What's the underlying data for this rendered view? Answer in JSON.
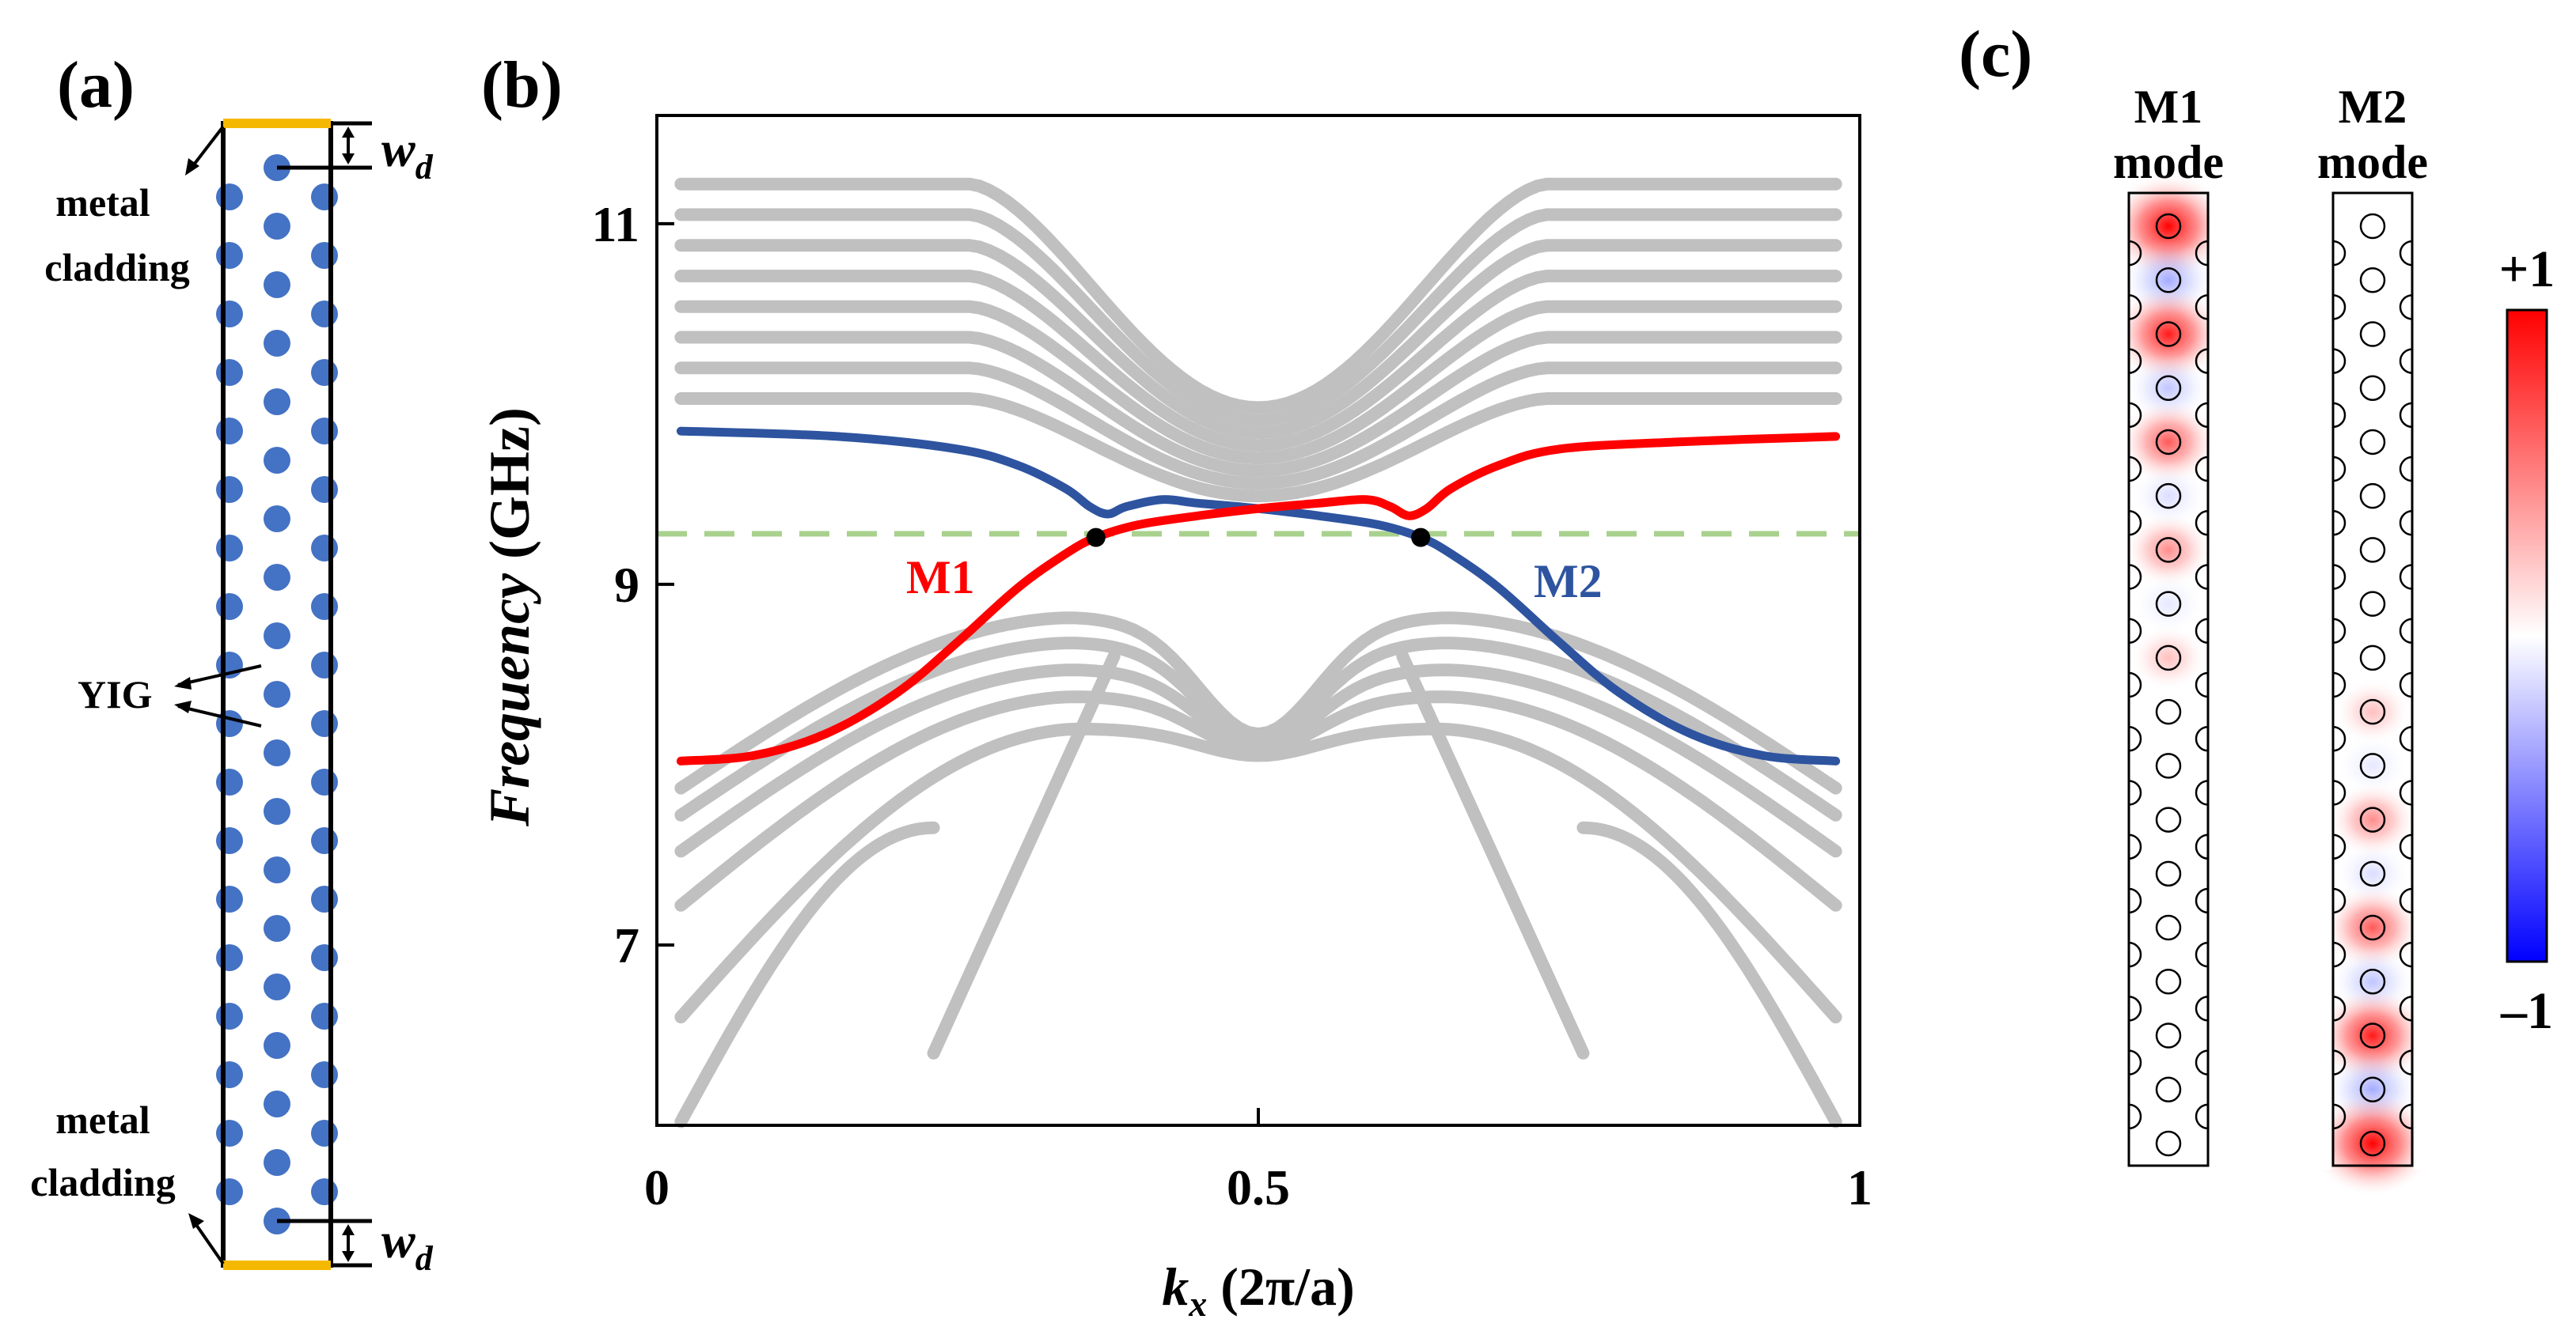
{
  "panels": {
    "a": {
      "label": "(a)",
      "wd_label": "w",
      "wd_sub": "d",
      "metal_top": [
        "metal",
        "cladding"
      ],
      "metal_bottom": [
        "metal",
        "cladding"
      ],
      "yig_label": "YIG",
      "colors": {
        "rod": "#4472c4",
        "cladding": "#f5b800",
        "frame": "#000000"
      }
    },
    "b": {
      "label": "(b)",
      "ylabel_italic": "Frequency",
      "ylabel_unit": "(GHz)",
      "xlabel_k": "k",
      "xlabel_sub": "x",
      "xlabel_unit": " (2π/a)",
      "m1_label": "M1",
      "m2_label": "M2",
      "colors": {
        "m1": "#ff0000",
        "m2": "#2e54a0",
        "bulk": "#c0c0c0",
        "dash": "#a9d18e"
      }
    },
    "c": {
      "label": "(c)",
      "m1_title": [
        "M1",
        "mode"
      ],
      "m2_title": [
        "M2",
        "mode"
      ],
      "cbar_max": "+1",
      "cbar_min": "–1",
      "colors": {
        "pos": "#ff0000",
        "neg": "#0000ff",
        "mid": "#ffffff"
      }
    }
  },
  "chart_data": {
    "type": "line",
    "xlabel": "kx (2π/a)",
    "ylabel": "Frequency (GHz)",
    "xlim": [
      0,
      1
    ],
    "ylim": [
      6,
      11.6
    ],
    "xticks": [
      {
        "v": 0,
        "t": "0"
      },
      {
        "v": 0.5,
        "t": "0.5"
      },
      {
        "v": 1,
        "t": "1"
      }
    ],
    "yticks": [
      {
        "v": 7,
        "t": "7"
      },
      {
        "v": 9,
        "t": "9"
      },
      {
        "v": 11,
        "t": "11"
      }
    ],
    "grid": false,
    "dashed_level": 9.28,
    "crossing_points": [
      [
        0.365,
        9.26
      ],
      [
        0.635,
        9.26
      ]
    ],
    "series": [
      {
        "name": "M1",
        "color": "#ff0000",
        "points": [
          [
            0.02,
            8.02
          ],
          [
            0.08,
            8.05
          ],
          [
            0.14,
            8.17
          ],
          [
            0.2,
            8.4
          ],
          [
            0.25,
            8.68
          ],
          [
            0.3,
            8.98
          ],
          [
            0.34,
            9.17
          ],
          [
            0.365,
            9.26
          ],
          [
            0.4,
            9.33
          ],
          [
            0.45,
            9.38
          ],
          [
            0.5,
            9.42
          ],
          [
            0.55,
            9.45
          ],
          [
            0.59,
            9.47
          ],
          [
            0.61,
            9.43
          ],
          [
            0.625,
            9.38
          ],
          [
            0.64,
            9.42
          ],
          [
            0.66,
            9.53
          ],
          [
            0.7,
            9.66
          ],
          [
            0.75,
            9.75
          ],
          [
            0.85,
            9.79
          ],
          [
            0.98,
            9.82
          ]
        ]
      },
      {
        "name": "M2",
        "color": "#2e54a0",
        "points": [
          [
            0.02,
            9.85
          ],
          [
            0.15,
            9.82
          ],
          [
            0.25,
            9.75
          ],
          [
            0.3,
            9.66
          ],
          [
            0.34,
            9.53
          ],
          [
            0.36,
            9.43
          ],
          [
            0.375,
            9.39
          ],
          [
            0.39,
            9.43
          ],
          [
            0.42,
            9.47
          ],
          [
            0.45,
            9.45
          ],
          [
            0.5,
            9.42
          ],
          [
            0.55,
            9.38
          ],
          [
            0.6,
            9.33
          ],
          [
            0.635,
            9.26
          ],
          [
            0.66,
            9.17
          ],
          [
            0.7,
            8.98
          ],
          [
            0.75,
            8.68
          ],
          [
            0.8,
            8.4
          ],
          [
            0.86,
            8.17
          ],
          [
            0.92,
            8.05
          ],
          [
            0.98,
            8.02
          ]
        ]
      }
    ],
    "bulk_bands": {
      "color": "#c0c0c0",
      "upper_edge_levels": [
        11.22,
        11.05,
        10.88,
        10.71,
        10.54,
        10.37,
        10.2,
        10.03
      ],
      "upper_center_levels": [
        9.98,
        9.91,
        9.84,
        9.77,
        9.7,
        9.63,
        9.56,
        9.49
      ],
      "lower_edge_levels": [
        6.02,
        6.6,
        7.22,
        7.52,
        7.72,
        7.87
      ],
      "lower_center_levels": [
        6.4,
        8.05,
        8.08,
        8.11,
        8.14,
        8.17
      ],
      "lower_peak_levels": [
        7.65,
        8.2,
        8.38,
        8.53,
        8.68,
        8.82
      ]
    },
    "mode_profiles": {
      "m1_intensity": [
        1.0,
        -0.45,
        0.8,
        -0.28,
        0.55,
        -0.12,
        0.35,
        -0.05,
        0.15,
        0.0,
        0.0,
        0.0,
        0.0,
        0.0,
        0.0,
        0.0,
        0.0,
        0.0
      ],
      "m2_intensity": [
        0.0,
        0.0,
        0.0,
        0.0,
        0.0,
        0.0,
        0.0,
        0.0,
        0.0,
        0.0,
        0.15,
        -0.05,
        0.35,
        -0.12,
        0.55,
        -0.28,
        0.8,
        -0.45,
        1.0
      ]
    }
  }
}
